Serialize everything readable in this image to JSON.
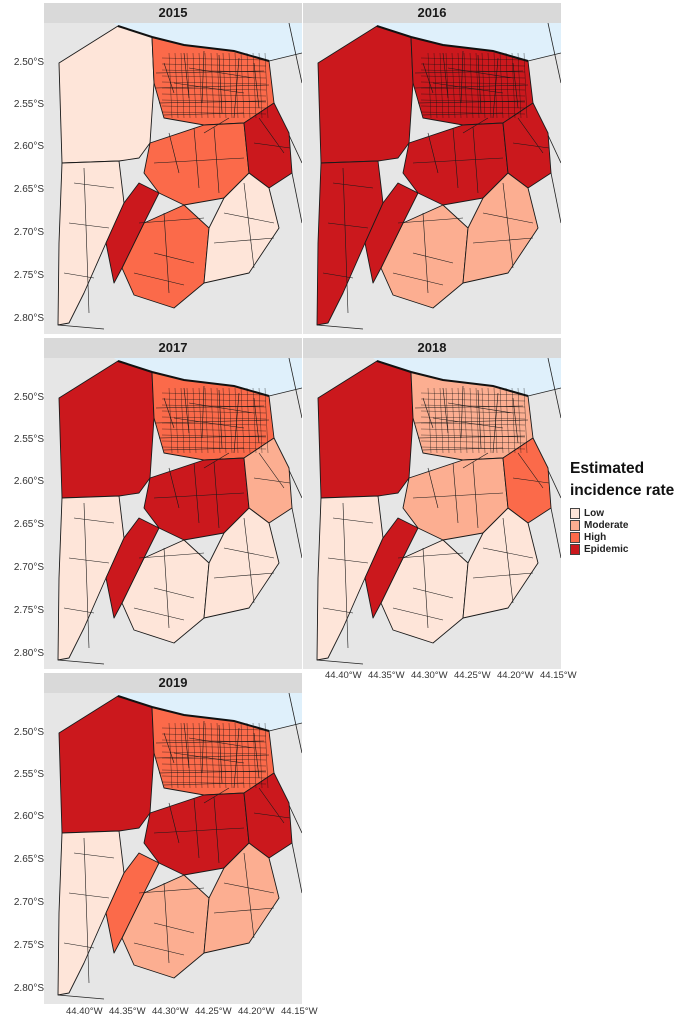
{
  "legend": {
    "title_line1": "Estimated",
    "title_line2": "incidence rate",
    "items": [
      {
        "label": "Low",
        "color": "#fee5d9"
      },
      {
        "label": "Moderate",
        "color": "#fcae91"
      },
      {
        "label": "High",
        "color": "#fb6a4a"
      },
      {
        "label": "Epidemic",
        "color": "#cb181d"
      }
    ]
  },
  "y_ticks": [
    "2.50°S",
    "2.55°S",
    "2.60°S",
    "2.65°S",
    "2.70°S",
    "2.75°S",
    "2.80°S"
  ],
  "x_ticks": [
    "44.40°W",
    "44.35°W",
    "44.30°W",
    "44.25°W",
    "44.20°W",
    "44.15°W"
  ],
  "colors": {
    "strip": "#d9d9d9",
    "background": "#e6e6e6",
    "sea": "#dff0fb"
  },
  "panels": [
    {
      "year": "2015",
      "levels": {
        "west": "Low",
        "southwest": "Low",
        "north": "High",
        "center": "High",
        "east": "Epidemic",
        "south": "High",
        "southeast": "Low",
        "corridor": "Epidemic"
      }
    },
    {
      "year": "2016",
      "levels": {
        "west": "Epidemic",
        "southwest": "Epidemic",
        "north": "Epidemic",
        "center": "Epidemic",
        "east": "Epidemic",
        "south": "Moderate",
        "southeast": "Moderate",
        "corridor": "Epidemic"
      }
    },
    {
      "year": "2017",
      "levels": {
        "west": "Epidemic",
        "southwest": "Low",
        "north": "High",
        "center": "Epidemic",
        "east": "Moderate",
        "south": "Low",
        "southeast": "Low",
        "corridor": "Epidemic"
      }
    },
    {
      "year": "2018",
      "levels": {
        "west": "Epidemic",
        "southwest": "Low",
        "north": "Moderate",
        "center": "Moderate",
        "east": "High",
        "south": "Low",
        "southeast": "Low",
        "corridor": "Epidemic"
      }
    },
    {
      "year": "2019",
      "levels": {
        "west": "Epidemic",
        "southwest": "Low",
        "north": "High",
        "center": "Epidemic",
        "east": "Epidemic",
        "south": "Moderate",
        "southeast": "Moderate",
        "corridor": "High"
      }
    }
  ]
}
